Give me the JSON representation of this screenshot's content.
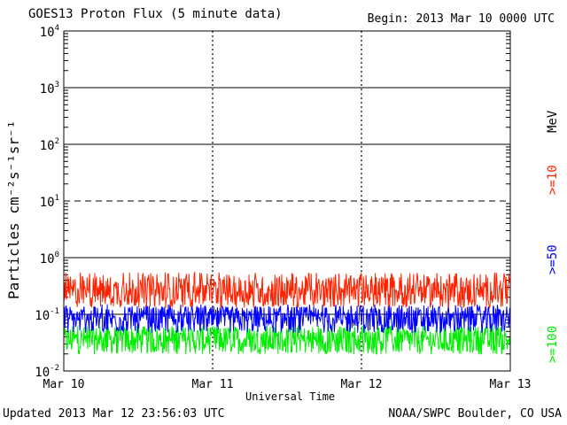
{
  "header": {
    "title": "GOES13 Proton Flux (5 minute data)",
    "begin": "Begin: 2013 Mar 10 0000 UTC"
  },
  "footer": {
    "updated": "Updated 2013 Mar 12 23:56:03 UTC",
    "credit": "NOAA/SWPC Boulder, CO USA"
  },
  "chart_data": {
    "type": "line",
    "title": "GOES13 Proton Flux (5 minute data)",
    "xlabel": "Universal Time",
    "ylabel": "Particles cm⁻²s⁻¹sr⁻¹",
    "y_scale": "log",
    "ylim": [
      0.01,
      10000
    ],
    "y_ticks": [
      {
        "base": "10",
        "exp": "4",
        "value": 10000
      },
      {
        "base": "10",
        "exp": "3",
        "value": 1000
      },
      {
        "base": "10",
        "exp": "2",
        "value": 100
      },
      {
        "base": "10",
        "exp": "1",
        "value": 10
      },
      {
        "base": "10",
        "exp": "0",
        "value": 1
      },
      {
        "base": "10",
        "exp": "-1",
        "value": 0.1
      },
      {
        "base": "10",
        "exp": "-2",
        "value": 0.01
      }
    ],
    "x_ticks": [
      "Mar 10",
      "Mar 11",
      "Mar 12",
      "Mar 13"
    ],
    "xlim_days": [
      0,
      3
    ],
    "units_label": "MeV",
    "series": [
      {
        "name": ">=10",
        "color": "#ff2200",
        "low": 0.13,
        "high": 0.55,
        "typical": 0.25
      },
      {
        "name": ">=50",
        "color": "#0000ff",
        "low": 0.045,
        "high": 0.15,
        "typical": 0.08
      },
      {
        "name": ">=100",
        "color": "#00ee00",
        "low": 0.018,
        "high": 0.065,
        "typical": 0.035
      }
    ]
  }
}
